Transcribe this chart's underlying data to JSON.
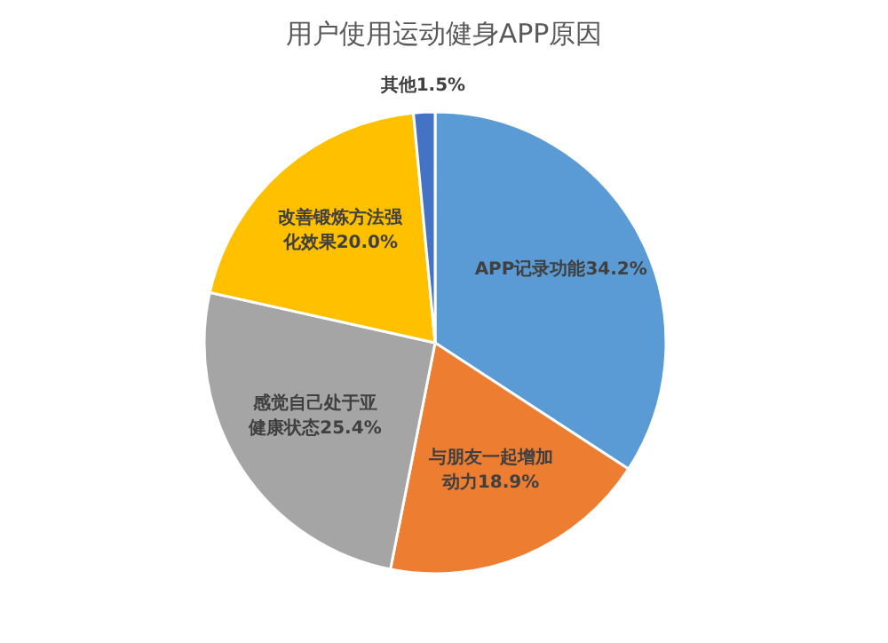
{
  "chart_data": {
    "type": "pie",
    "title": "用户使用运动健身APP原因",
    "categories": [
      "APP记录功能",
      "与朋友一起增加动力",
      "感觉自己处于亚健康状态",
      "改善锻炼方法强化效果",
      "其他"
    ],
    "values": [
      34.2,
      18.9,
      25.4,
      20.0,
      1.5
    ],
    "value_labels": [
      "34.2%",
      "18.9%",
      "25.4%",
      "20.0%",
      "1.5%"
    ],
    "colors": [
      "#5b9bd5",
      "#ed7d31",
      "#a5a5a5",
      "#ffc000",
      "#4472c4"
    ]
  }
}
